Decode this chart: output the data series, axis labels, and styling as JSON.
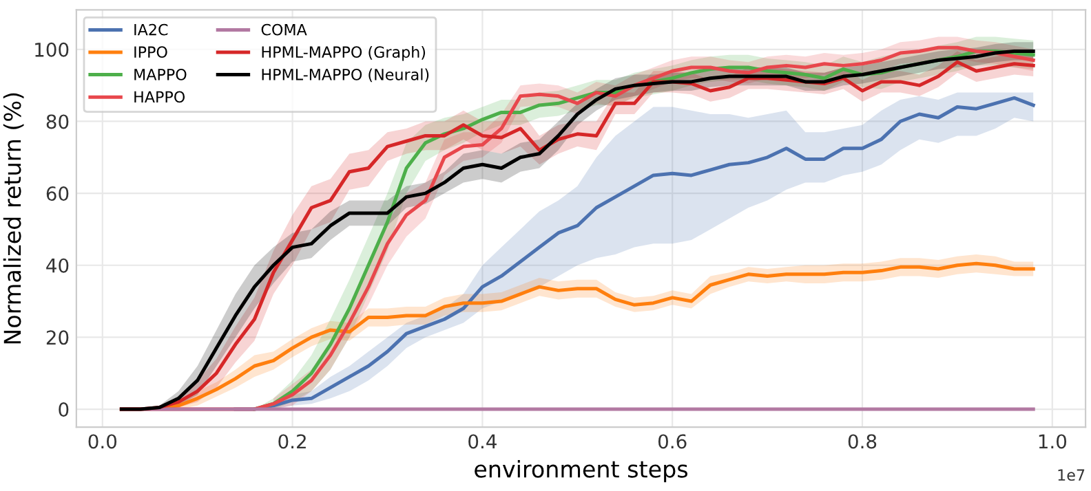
{
  "chart_data": {
    "type": "line",
    "xlabel": "environment steps",
    "ylabel": "Normalized return (%)",
    "annotations": [
      "1e7"
    ],
    "x": [
      0.02,
      0.04,
      0.06,
      0.08,
      0.1,
      0.12,
      0.14,
      0.16,
      0.18,
      0.2,
      0.22,
      0.24,
      0.26,
      0.28,
      0.3,
      0.32,
      0.34,
      0.36,
      0.38,
      0.4,
      0.42,
      0.44,
      0.46,
      0.48,
      0.5,
      0.52,
      0.54,
      0.56,
      0.58,
      0.6,
      0.62,
      0.64,
      0.66,
      0.68,
      0.7,
      0.72,
      0.74,
      0.76,
      0.78,
      0.8,
      0.82,
      0.84,
      0.86,
      0.88,
      0.9,
      0.92,
      0.94,
      0.96,
      0.98
    ],
    "xlim": [
      -0.0275,
      1.035
    ],
    "ylim": [
      -5,
      111
    ],
    "xticks": [
      {
        "value": 0,
        "label": "0.0"
      },
      0.2,
      0.4,
      0.6,
      0.8,
      {
        "value": 1,
        "label": "1.0"
      }
    ],
    "yticks": [
      0,
      20,
      40,
      60,
      80,
      100
    ],
    "grid": true,
    "legend": "top left",
    "series": [
      {
        "name": "IA2C",
        "color": "#4c72b0",
        "values": [
          null,
          null,
          null,
          null,
          null,
          null,
          0,
          0,
          1,
          2.5,
          3,
          6,
          9,
          12,
          16,
          21,
          23,
          25,
          28,
          34,
          37,
          41,
          45,
          49,
          51,
          56,
          59,
          62,
          65,
          65.5,
          65,
          66.5,
          68,
          68.5,
          70,
          72.5,
          69.5,
          69.5,
          72.5,
          72.5,
          75,
          80,
          82,
          81,
          84,
          83.5,
          85,
          86.5,
          84.5
        ],
        "lower": [
          0,
          0,
          0,
          0,
          0,
          0,
          0,
          0,
          0,
          1,
          1.5,
          3,
          5,
          8,
          12,
          17,
          20,
          22,
          24,
          28,
          30,
          32,
          34,
          37,
          40,
          42,
          43,
          45,
          46,
          46,
          47,
          50,
          53,
          56,
          58,
          61,
          63,
          63,
          65,
          66,
          68,
          72,
          75,
          74,
          76,
          76,
          78,
          81,
          80
        ],
        "upper": [
          0,
          0,
          0,
          0,
          0,
          0,
          0,
          0,
          2,
          4,
          5,
          9,
          12,
          16,
          20,
          24,
          26,
          28,
          32,
          40,
          45,
          50,
          55,
          58,
          62,
          70,
          76,
          80,
          84,
          84,
          83,
          82,
          82,
          81,
          82,
          83,
          77,
          77,
          78,
          79,
          83,
          86,
          87,
          86,
          88,
          88,
          88,
          88,
          88
        ]
      },
      {
        "name": "IPPO",
        "color": "#ff7f0e",
        "values": [
          0,
          0,
          0.3,
          1,
          3,
          5.5,
          8.5,
          12,
          13.5,
          17,
          20,
          22,
          21.5,
          25.5,
          25.5,
          26,
          26,
          28.5,
          29.5,
          29.5,
          30,
          32,
          34,
          33,
          33.5,
          33.5,
          30.5,
          29,
          29.5,
          31,
          30,
          34.5,
          36,
          37.5,
          37,
          37.5,
          37.5,
          37.5,
          38,
          38,
          38.5,
          39.5,
          39.5,
          39,
          40,
          40.5,
          40,
          39,
          39
        ],
        "lower": [
          0,
          0,
          0,
          0,
          1,
          3.5,
          6,
          9,
          11,
          14.5,
          17.5,
          19.5,
          19,
          23,
          23,
          23.5,
          23.5,
          26,
          27,
          27,
          27.5,
          29.5,
          31.5,
          30.5,
          31,
          31,
          28.5,
          27,
          27.5,
          29,
          28,
          32,
          34,
          35.5,
          35,
          35.5,
          35,
          35,
          35.5,
          35.5,
          36,
          37,
          37,
          36.5,
          37.5,
          38,
          37.5,
          37,
          37
        ],
        "upper": [
          0,
          0,
          0.8,
          2,
          5,
          7.5,
          11,
          15,
          16,
          19.5,
          22.5,
          24.5,
          24,
          28,
          28,
          28.5,
          28.5,
          31,
          32,
          32,
          32.5,
          34.5,
          36.5,
          35.5,
          36,
          36,
          32.5,
          31,
          31.5,
          33,
          32,
          37,
          38,
          39.5,
          39,
          39.5,
          40,
          40,
          40.5,
          40.5,
          41,
          42,
          42,
          41.5,
          42.5,
          43,
          42.5,
          41,
          41
        ]
      },
      {
        "name": "MAPPO",
        "color": "#4daf4a",
        "values": [
          null,
          null,
          null,
          null,
          null,
          null,
          null,
          0,
          1.5,
          5,
          10,
          18,
          28,
          40,
          52,
          67,
          74,
          76.5,
          78,
          80.5,
          82.5,
          82.5,
          84.5,
          85,
          86.5,
          88,
          88,
          90,
          91,
          92,
          93.5,
          94.5,
          95,
          95,
          94,
          93.5,
          93,
          92,
          94.5,
          93,
          93.5,
          95,
          96,
          97,
          98,
          99.5,
          99.5,
          99,
          98.5
        ],
        "lower": [
          0,
          0,
          0,
          0,
          0,
          0,
          0,
          0,
          0,
          2,
          5,
          11,
          20,
          32,
          44,
          60,
          69,
          72,
          74,
          77,
          79,
          79,
          81,
          81.5,
          83,
          84.5,
          84.5,
          86.5,
          87.5,
          88.5,
          90,
          91,
          91.5,
          91.5,
          90.5,
          90,
          89.5,
          88.5,
          91,
          89.5,
          89,
          91,
          92,
          93,
          94,
          95.5,
          95.5,
          95,
          94.5
        ],
        "upper": [
          0,
          0,
          0,
          0,
          0,
          0,
          0,
          0,
          3,
          8,
          15,
          25,
          36,
          48,
          60,
          74,
          79,
          81,
          82,
          84,
          86,
          86,
          88,
          88.5,
          90,
          91.5,
          91.5,
          93.5,
          94.5,
          95.5,
          97,
          98,
          98.5,
          98.5,
          97.5,
          97,
          96.5,
          95.5,
          98,
          96.5,
          98,
          99,
          100,
          101,
          102,
          103.5,
          103.5,
          103,
          102.5
        ]
      },
      {
        "name": "HAPPO",
        "color": "#e8474c",
        "values": [
          0,
          0,
          0,
          0,
          0,
          0,
          0,
          0,
          1.5,
          4,
          8,
          15,
          24,
          34,
          46,
          54,
          58,
          70,
          73,
          73.5,
          78,
          87,
          87.5,
          87,
          85,
          88,
          87,
          90,
          92,
          94,
          95,
          95,
          94,
          93.5,
          95,
          95.5,
          95,
          96,
          95.5,
          96,
          97,
          99,
          99.5,
          100.5,
          100.5,
          99.5,
          99,
          98,
          97
        ],
        "lower": [
          null,
          null,
          null,
          null,
          null,
          null,
          null,
          null,
          0,
          1,
          5,
          11,
          20,
          29,
          40,
          48,
          53,
          65,
          69,
          70,
          74,
          84,
          84.5,
          84,
          82,
          85,
          84,
          87,
          89,
          91,
          92,
          92,
          91,
          90.5,
          92,
          92.5,
          92,
          93,
          92.5,
          93,
          94,
          96,
          96.5,
          97.5,
          97.5,
          96.5,
          96,
          95,
          94
        ],
        "upper": [
          null,
          null,
          null,
          null,
          null,
          null,
          null,
          null,
          3,
          7,
          11,
          19,
          28,
          39,
          52,
          60,
          63,
          75,
          77,
          77,
          82,
          90,
          90.5,
          90,
          88,
          91,
          90,
          93,
          95,
          97,
          98,
          98,
          97,
          96.5,
          98,
          98.5,
          98,
          99,
          98.5,
          99,
          100,
          102,
          102.5,
          103.5,
          103.5,
          102.5,
          102,
          101,
          100
        ]
      },
      {
        "name": "COMA",
        "color": "#b279a2",
        "values": [
          0,
          0,
          0,
          0,
          0,
          0,
          0,
          0,
          0,
          0,
          0,
          0,
          0,
          0,
          0,
          0,
          0,
          0,
          0,
          0,
          0,
          0,
          0,
          0,
          0,
          0,
          0,
          0,
          0,
          0,
          0,
          0,
          0,
          0,
          0,
          0,
          0,
          0,
          0,
          0,
          0,
          0,
          0,
          0,
          0,
          0,
          0,
          0,
          0
        ]
      },
      {
        "name": "HPML-MAPPO (Graph)",
        "color": "#d62728",
        "values": [
          0,
          0,
          0.5,
          2,
          5,
          10,
          18,
          25,
          38,
          47,
          56,
          58,
          66,
          67,
          73,
          74.5,
          76,
          76,
          79,
          76,
          75.5,
          78,
          72,
          75,
          76.5,
          76,
          85,
          85,
          91,
          91,
          90.5,
          88.5,
          89.5,
          92,
          92,
          91.5,
          91,
          90.5,
          92,
          88.5,
          91,
          91,
          90,
          92.5,
          96.5,
          94,
          95,
          96,
          95.5
        ],
        "lower": [
          0,
          0,
          0,
          0.5,
          2,
          6,
          13,
          19,
          32,
          40,
          50,
          52,
          61,
          62,
          69,
          71,
          72,
          72,
          75,
          72,
          71,
          73,
          68,
          71,
          73,
          72,
          82,
          82,
          88,
          88,
          87.5,
          85.5,
          86.5,
          89,
          89,
          88.5,
          88,
          87.5,
          89,
          85.5,
          88,
          88,
          87,
          89.5,
          93.5,
          91,
          92,
          93,
          92.5
        ],
        "upper": [
          0,
          0,
          1,
          3.5,
          8,
          14,
          23,
          31,
          44,
          54,
          62,
          64,
          71,
          72,
          77,
          78,
          80,
          80,
          83,
          80,
          80,
          83,
          76,
          79,
          80,
          80,
          88,
          88,
          94,
          94,
          93.5,
          91.5,
          92.5,
          95,
          95,
          94.5,
          94,
          93.5,
          95,
          91.5,
          94,
          94,
          93,
          95.5,
          99.5,
          97,
          98,
          99,
          98.5
        ]
      },
      {
        "name": "HPML-MAPPO (Neural)",
        "color": "#000000",
        "values": [
          0,
          0,
          0.5,
          3,
          8,
          17,
          26,
          34,
          40,
          45,
          46,
          51,
          54.5,
          54.5,
          54.5,
          59,
          60,
          63,
          67,
          68,
          67,
          70,
          71,
          76,
          82,
          86,
          89,
          90,
          90.5,
          91,
          91,
          92,
          92.5,
          92.5,
          92.5,
          92.5,
          91,
          91,
          92.5,
          93,
          94,
          95,
          96,
          97,
          97.5,
          98,
          99,
          99.5,
          99.5
        ],
        "lower": [
          0,
          0,
          0,
          1,
          4,
          12,
          20,
          28,
          35,
          41,
          42,
          47,
          51,
          51,
          51,
          56,
          57,
          60,
          63,
          64,
          63,
          66,
          67,
          72,
          79,
          83,
          86,
          87,
          88,
          88.5,
          88.5,
          89.5,
          90,
          90,
          90,
          90,
          88.5,
          88.5,
          90,
          90.5,
          91.5,
          92.5,
          93.5,
          94.5,
          95,
          95.5,
          96.5,
          97,
          97
        ],
        "upper": [
          0,
          0,
          1,
          5,
          12,
          22,
          32,
          40,
          45,
          49,
          50,
          55,
          58,
          58,
          58,
          62,
          63,
          66,
          71,
          72,
          71,
          74,
          75,
          80,
          85,
          89,
          92,
          93,
          93,
          93.5,
          93.5,
          94.5,
          95,
          95,
          95,
          95,
          93.5,
          93.5,
          95,
          95.5,
          96.5,
          97.5,
          98.5,
          99.5,
          100,
          100.5,
          101.5,
          102,
          102
        ]
      }
    ]
  }
}
